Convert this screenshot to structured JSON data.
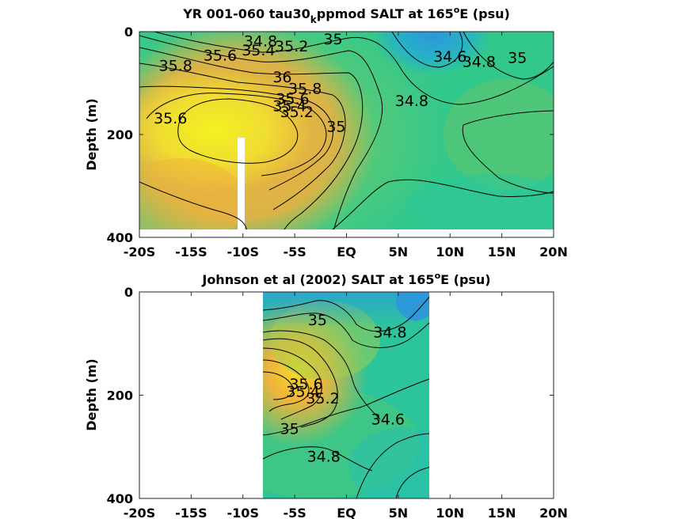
{
  "figure": {
    "panels": [
      {
        "id": "model",
        "title_main": "YR 001-060 tau30",
        "title_sub": "k",
        "title_rest": "ppmod SALT at 165",
        "title_sup": "o",
        "title_end": "E (psu)",
        "ylabel": "Depth (m)"
      },
      {
        "id": "obs",
        "title_main": "Johnson et al (2002) SALT at 165",
        "title_sup": "o",
        "title_end": "E (psu)",
        "ylabel": "Depth (m)"
      }
    ],
    "colors": {
      "high": "#f2f21f",
      "orange": "#f0b43c",
      "green": "#8ccc5a",
      "teal": "#32c88c",
      "cyan": "#26b4b4",
      "blue": "#2d96dc",
      "contour": "#000000",
      "axes": "#262626"
    }
  },
  "chart_data": [
    {
      "type": "heatmap",
      "title": "YR 001-060 tau30_kppmod SALT at 165°E (psu)",
      "xlabel": "",
      "ylabel": "Depth (m)",
      "xlim": [
        -20,
        20
      ],
      "ylim": [
        400,
        0
      ],
      "xticks": [
        -20,
        -15,
        -10,
        -5,
        0,
        5,
        10,
        15,
        20
      ],
      "xtick_labels": [
        "-20S",
        "-15S",
        "-10S",
        "-5S",
        "EQ",
        "5N",
        "10N",
        "15N",
        "20N"
      ],
      "yticks": [
        0,
        200,
        400
      ],
      "ytick_labels": [
        "0",
        "200",
        "400"
      ],
      "contour_labels": [
        {
          "value": "34.8",
          "lat": -8.3,
          "depth": 20
        },
        {
          "value": "35",
          "lat": -1.3,
          "depth": 16
        },
        {
          "value": "35.2",
          "lat": -5.3,
          "depth": 30
        },
        {
          "value": "35.4",
          "lat": -8.5,
          "depth": 38
        },
        {
          "value": "35.6",
          "lat": -12.2,
          "depth": 48
        },
        {
          "value": "35.8",
          "lat": -16.5,
          "depth": 68
        },
        {
          "value": "36",
          "lat": -6.2,
          "depth": 90
        },
        {
          "value": "35.8",
          "lat": -4.0,
          "depth": 112
        },
        {
          "value": "35.6",
          "lat": -5.2,
          "depth": 132
        },
        {
          "value": "35.4",
          "lat": -5.5,
          "depth": 146
        },
        {
          "value": "35.2",
          "lat": -4.8,
          "depth": 158
        },
        {
          "value": "35",
          "lat": -1.0,
          "depth": 186
        },
        {
          "value": "35.6",
          "lat": -17.0,
          "depth": 170
        },
        {
          "value": "34.8",
          "lat": 6.3,
          "depth": 136
        },
        {
          "value": "34.6",
          "lat": 10.0,
          "depth": 50
        },
        {
          "value": "34.8",
          "lat": 12.8,
          "depth": 60
        },
        {
          "value": "35",
          "lat": 16.5,
          "depth": 52
        }
      ]
    },
    {
      "type": "heatmap",
      "title": "Johnson et al (2002) SALT at 165°E (psu)",
      "xlabel": "",
      "ylabel": "Depth (m)",
      "xlim": [
        -20,
        20
      ],
      "ylim": [
        400,
        0
      ],
      "data_lat_range": [
        -8,
        8
      ],
      "xticks": [
        -20,
        -15,
        -10,
        -5,
        0,
        5,
        10,
        15,
        20
      ],
      "xtick_labels": [
        "-20S",
        "-15S",
        "-10S",
        "-5S",
        "EQ",
        "5N",
        "10N",
        "15N",
        "20N"
      ],
      "yticks": [
        0,
        200,
        400
      ],
      "ytick_labels": [
        "0",
        "200",
        "400"
      ],
      "contour_labels": [
        {
          "value": "35",
          "lat": -2.8,
          "depth": 56
        },
        {
          "value": "34.8",
          "lat": 4.2,
          "depth": 80
        },
        {
          "value": "35.6",
          "lat": -3.9,
          "depth": 180
        },
        {
          "value": "35.4",
          "lat": -4.2,
          "depth": 195
        },
        {
          "value": "35.2",
          "lat": -2.3,
          "depth": 208
        },
        {
          "value": "35",
          "lat": -5.5,
          "depth": 267
        },
        {
          "value": "34.6",
          "lat": 4.0,
          "depth": 248
        },
        {
          "value": "34.8",
          "lat": -2.2,
          "depth": 320
        }
      ]
    }
  ]
}
